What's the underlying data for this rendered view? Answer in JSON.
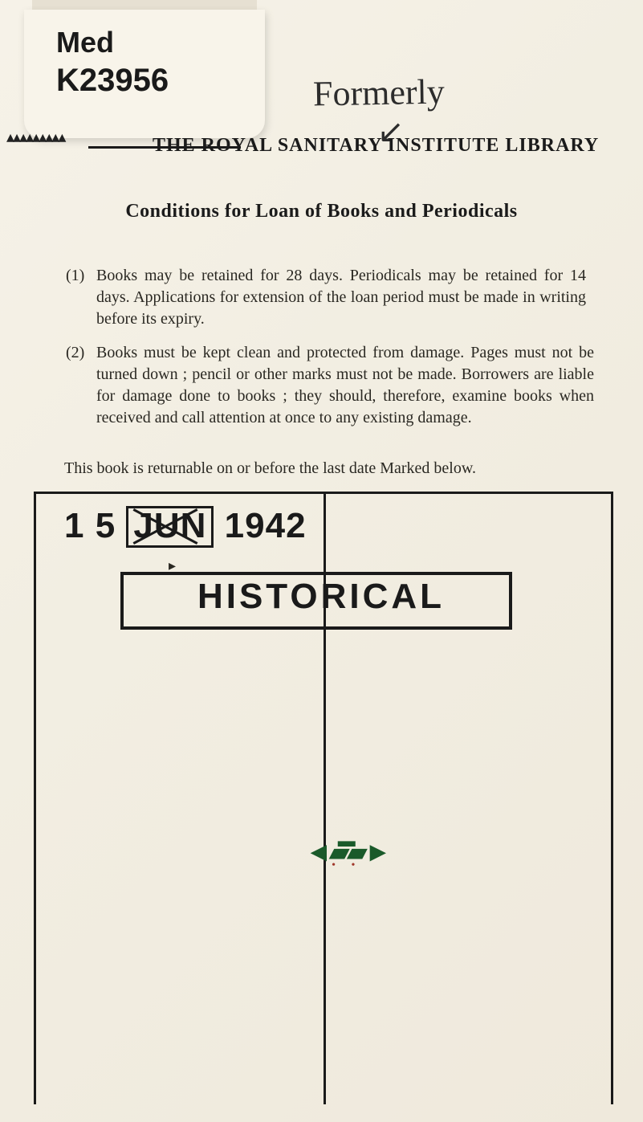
{
  "label": {
    "line1": "Med",
    "line2": "K23956"
  },
  "handwriting": {
    "word": "Formerly",
    "arrow": "↙"
  },
  "institute_line": "THE  ROYAL  SANITARY  INSTITUTE  LIBRARY",
  "conditions_title": "Conditions for Loan of Books and Periodicals",
  "para1_num": "(1)",
  "para1": "Books may be retained for 28 days.  Periodicals may be retained for 14 days.  Applications for extension of the loan period must be made in writing before its expiry.",
  "para2_num": "(2)",
  "para2": "Books must be kept clean and protected from damage.  Pages must not be turned down ;  pencil or other marks must not be made.  Borrowers are liable for damage done to books ;  they should, therefore, examine books when received and call attention at once to any existing damage.",
  "returnable": "This book is returnable on or before the last date Marked below.",
  "date_stamp": {
    "day": "1 5",
    "month": "JUN",
    "year": "1942"
  },
  "historical": "HISTORICAL",
  "colors": {
    "page_bg": "#f4f0e6",
    "ink": "#1a1a1a",
    "body_text": "#2a2822",
    "green_mark": "#1a5a2a",
    "red_dots": "#a0372a"
  }
}
